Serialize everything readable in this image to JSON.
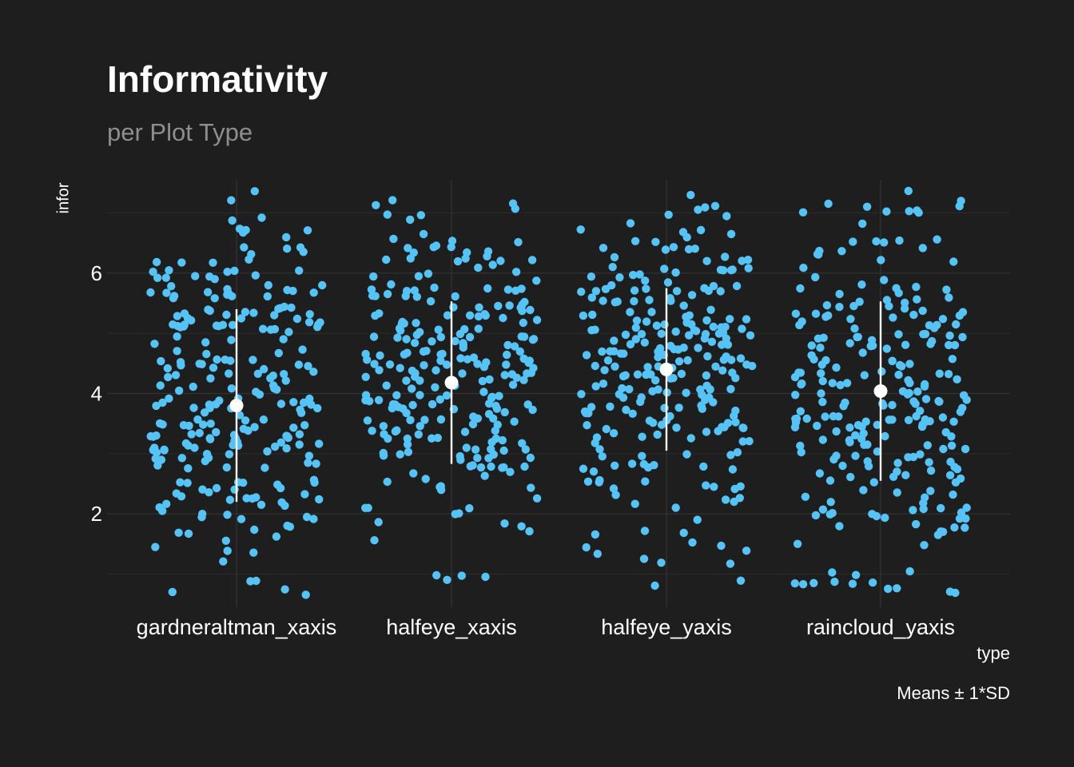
{
  "chart_data": {
    "type": "scatter",
    "title": "Informativity",
    "subtitle": "per Plot Type",
    "xlabel": "type",
    "ylabel": "infor",
    "caption": "Means ± 1*SD",
    "categories": [
      "gardneraltman_xaxis",
      "halfeye_xaxis",
      "halfeye_yaxis",
      "raincloud_yaxis"
    ],
    "y_ticks": [
      2,
      4,
      6
    ],
    "ylim": [
      0.45,
      7.55
    ],
    "grid": true,
    "point_color": "#55c3f5",
    "summary_color": "#ffffff",
    "background": "#1e1e1e",
    "summary": [
      {
        "category": "gardneraltman_xaxis",
        "mean": 3.8,
        "sd_low": 2.2,
        "sd_high": 5.4
      },
      {
        "category": "halfeye_xaxis",
        "mean": 4.18,
        "sd_low": 2.83,
        "sd_high": 5.53
      },
      {
        "category": "halfeye_yaxis",
        "mean": 4.4,
        "sd_low": 3.05,
        "sd_high": 5.75
      },
      {
        "category": "raincloud_yaxis",
        "mean": 4.04,
        "sd_low": 2.55,
        "sd_high": 5.53
      }
    ],
    "point_counts": [
      250,
      250,
      250,
      250
    ],
    "y_range_points": [
      [
        0.65,
        7.4
      ],
      [
        0.7,
        7.3
      ],
      [
        0.6,
        7.35
      ],
      [
        0.65,
        7.4
      ]
    ]
  }
}
